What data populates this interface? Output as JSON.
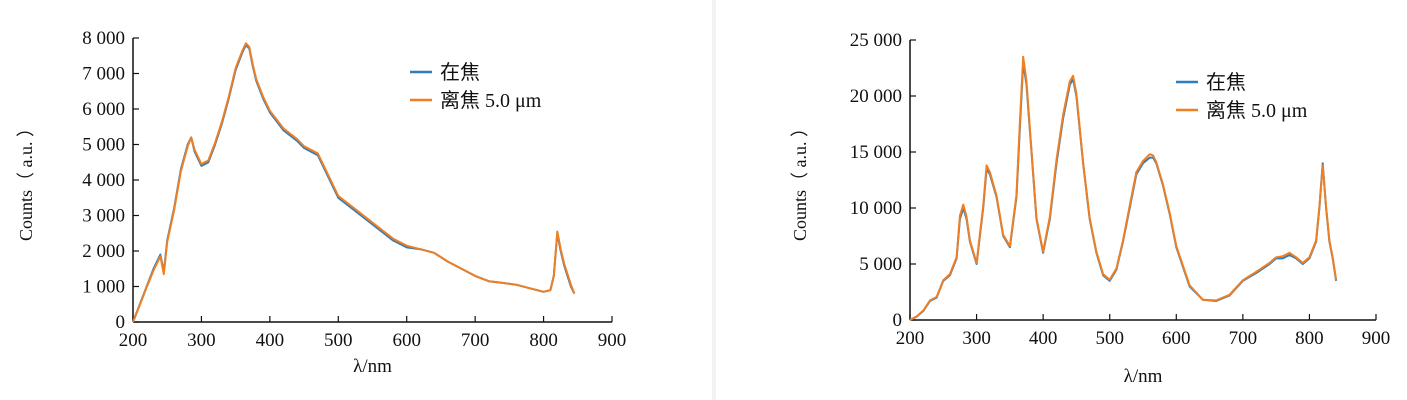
{
  "chart_data": [
    {
      "type": "line",
      "xlabel": "λ/nm",
      "ylabel": "Counts（ a.u. ）",
      "xlim": [
        200,
        900
      ],
      "ylim": [
        0,
        8000
      ],
      "x_ticks": [
        200,
        300,
        400,
        500,
        600,
        700,
        800,
        900
      ],
      "y_ticks": [
        0,
        1000,
        2000,
        3000,
        4000,
        5000,
        6000,
        7000,
        8000
      ],
      "x_tick_labels": [
        "200",
        "300",
        "400",
        "500",
        "600",
        "700",
        "800",
        "900"
      ],
      "y_tick_labels": [
        "0",
        "1 000",
        "2 000",
        "3 000",
        "4 000",
        "5 000",
        "6 000",
        "7 000",
        "8 000"
      ],
      "grid": false,
      "legend_position": "top-right",
      "series": [
        {
          "name": "在焦",
          "color": "#2e7dbd",
          "x": [
            200,
            210,
            220,
            230,
            240,
            245,
            250,
            260,
            270,
            280,
            285,
            290,
            300,
            310,
            320,
            330,
            340,
            350,
            360,
            365,
            370,
            375,
            380,
            390,
            400,
            420,
            440,
            450,
            460,
            470,
            480,
            500,
            520,
            540,
            560,
            580,
            600,
            620,
            640,
            660,
            680,
            700,
            720,
            740,
            760,
            780,
            800,
            810,
            815,
            820,
            825,
            830,
            835,
            840,
            845
          ],
          "y": [
            0,
            500,
            1000,
            1500,
            1900,
            1400,
            2300,
            3200,
            4300,
            5000,
            5200,
            4800,
            4400,
            4500,
            5000,
            5600,
            6300,
            7100,
            7600,
            7800,
            7700,
            7200,
            6800,
            6300,
            5900,
            5400,
            5100,
            4900,
            4800,
            4700,
            4300,
            3500,
            3200,
            2900,
            2600,
            2300,
            2100,
            2050,
            1950,
            1700,
            1500,
            1300,
            1150,
            1100,
            1050,
            950,
            850,
            900,
            1300,
            2500,
            2000,
            1600,
            1300,
            1000,
            800
          ]
        },
        {
          "name": "离焦 5.0 μm",
          "color": "#ef7f22",
          "x": [
            200,
            210,
            220,
            230,
            240,
            245,
            250,
            260,
            270,
            280,
            285,
            290,
            300,
            310,
            320,
            330,
            340,
            350,
            360,
            365,
            370,
            375,
            380,
            390,
            400,
            420,
            440,
            450,
            460,
            470,
            480,
            500,
            520,
            540,
            560,
            580,
            600,
            620,
            640,
            660,
            680,
            700,
            720,
            740,
            760,
            780,
            800,
            810,
            815,
            820,
            825,
            830,
            835,
            840,
            845
          ],
          "y": [
            0,
            480,
            980,
            1450,
            1850,
            1350,
            2250,
            3150,
            4250,
            4950,
            5200,
            4850,
            4450,
            4550,
            5050,
            5650,
            6350,
            7150,
            7650,
            7850,
            7750,
            7250,
            6850,
            6350,
            5950,
            5450,
            5150,
            4950,
            4850,
            4750,
            4350,
            3550,
            3250,
            2950,
            2650,
            2350,
            2150,
            2050,
            1950,
            1700,
            1500,
            1300,
            1150,
            1100,
            1050,
            950,
            850,
            900,
            1300,
            2550,
            2050,
            1650,
            1350,
            1050,
            800
          ]
        }
      ]
    },
    {
      "type": "line",
      "xlabel": "λ/nm",
      "ylabel": "Counts（ a.u. ）",
      "xlim": [
        200,
        900
      ],
      "ylim": [
        0,
        25000
      ],
      "x_ticks": [
        200,
        300,
        400,
        500,
        600,
        700,
        800,
        900
      ],
      "y_ticks": [
        0,
        5000,
        10000,
        15000,
        20000,
        25000
      ],
      "x_tick_labels": [
        "200",
        "300",
        "400",
        "500",
        "600",
        "700",
        "800",
        "900"
      ],
      "y_tick_labels": [
        "0",
        "5 000",
        "10 000",
        "15 000",
        "20 000",
        "25 000"
      ],
      "grid": false,
      "legend_position": "top-right",
      "series": [
        {
          "name": "在焦",
          "color": "#2e7dbd",
          "x": [
            200,
            210,
            220,
            230,
            240,
            250,
            260,
            270,
            275,
            280,
            285,
            290,
            300,
            310,
            315,
            320,
            330,
            340,
            350,
            360,
            365,
            370,
            375,
            380,
            390,
            400,
            410,
            420,
            430,
            440,
            445,
            450,
            460,
            470,
            480,
            490,
            500,
            510,
            520,
            530,
            540,
            550,
            560,
            565,
            570,
            580,
            590,
            600,
            620,
            640,
            660,
            680,
            700,
            720,
            740,
            750,
            760,
            770,
            780,
            790,
            800,
            810,
            815,
            820,
            825,
            830,
            835,
            840
          ],
          "y": [
            0,
            300,
            800,
            1700,
            2000,
            3500,
            4000,
            5500,
            9000,
            10000,
            9000,
            7000,
            5000,
            10000,
            13500,
            13000,
            11000,
            7500,
            6500,
            11000,
            17000,
            23000,
            21000,
            17000,
            9000,
            6000,
            9000,
            14000,
            18000,
            21000,
            21500,
            20000,
            14000,
            9000,
            6000,
            4000,
            3500,
            4500,
            7000,
            10000,
            13000,
            14000,
            14500,
            14500,
            14000,
            12000,
            9500,
            6500,
            3000,
            1800,
            1700,
            2200,
            3500,
            4200,
            5000,
            5500,
            5500,
            5800,
            5500,
            5000,
            5500,
            7000,
            10000,
            14000,
            10000,
            7000,
            5500,
            3500
          ]
        },
        {
          "name": "离焦 5.0 μm",
          "color": "#ef7f22",
          "x": [
            200,
            210,
            220,
            230,
            240,
            250,
            260,
            270,
            275,
            280,
            285,
            290,
            300,
            310,
            315,
            320,
            330,
            340,
            350,
            360,
            365,
            370,
            375,
            380,
            390,
            400,
            410,
            420,
            430,
            440,
            445,
            450,
            460,
            470,
            480,
            490,
            500,
            510,
            520,
            530,
            540,
            550,
            560,
            565,
            570,
            580,
            590,
            600,
            620,
            640,
            660,
            680,
            700,
            720,
            740,
            750,
            760,
            770,
            780,
            790,
            800,
            810,
            815,
            820,
            825,
            830,
            835,
            840
          ],
          "y": [
            0,
            320,
            850,
            1750,
            2050,
            3550,
            4100,
            5600,
            9300,
            10300,
            9200,
            7100,
            5100,
            10200,
            13800,
            13200,
            11100,
            7600,
            6600,
            11200,
            17500,
            23500,
            21300,
            17200,
            9100,
            6100,
            9200,
            14300,
            18300,
            21300,
            21800,
            20200,
            14100,
            9100,
            6100,
            4100,
            3600,
            4600,
            7100,
            10200,
            13200,
            14200,
            14800,
            14700,
            14100,
            12100,
            9600,
            6600,
            3100,
            1800,
            1750,
            2250,
            3550,
            4300,
            5100,
            5600,
            5700,
            6000,
            5600,
            5100,
            5600,
            7100,
            10100,
            13800,
            10100,
            7100,
            5600,
            3600
          ]
        }
      ]
    }
  ]
}
